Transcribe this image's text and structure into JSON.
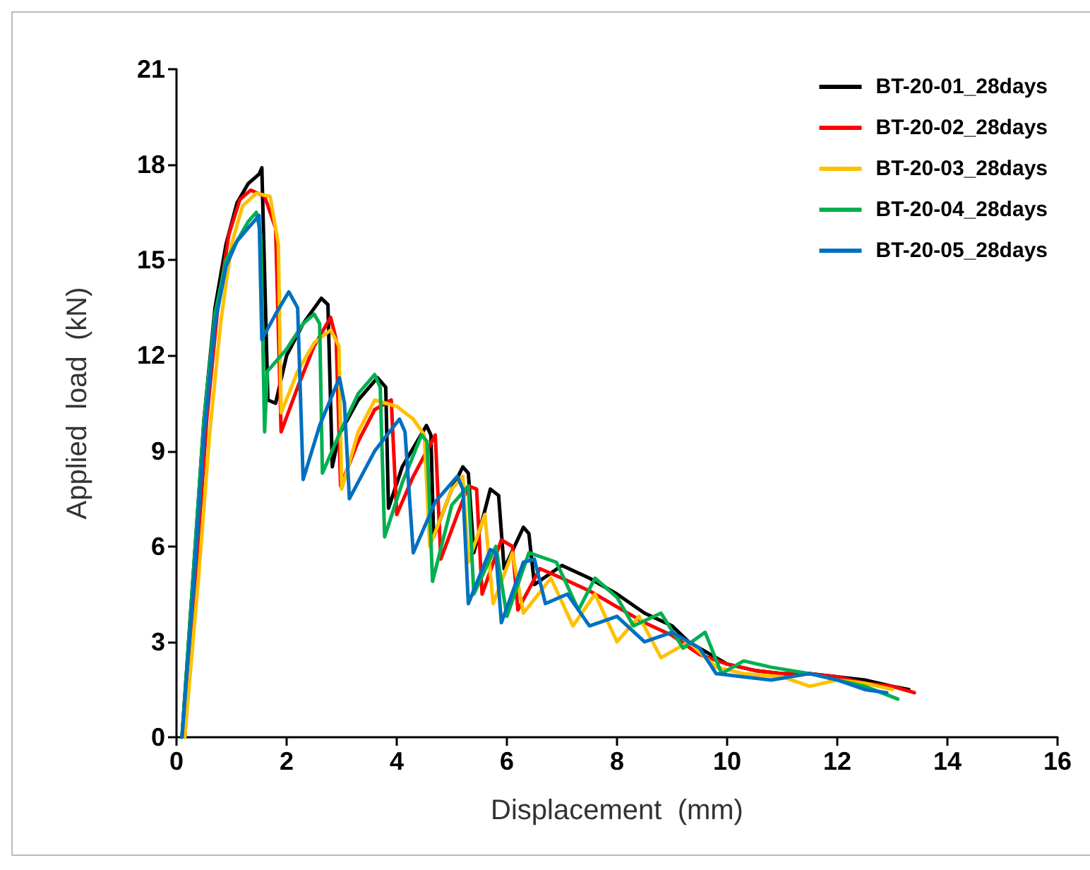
{
  "chart_data": {
    "type": "line",
    "xlabel": "Displacement  (mm)",
    "ylabel": "Applied  load  (kN)",
    "xlim": [
      0,
      16
    ],
    "xticks": [
      0,
      2,
      4,
      6,
      8,
      10,
      12,
      14,
      16
    ],
    "ylim": [
      0,
      21
    ],
    "yticks": [
      0,
      3,
      6,
      9,
      12,
      15,
      18,
      21
    ],
    "grid": false,
    "legend": "top right",
    "marker": "none",
    "line_style": "solid",
    "series": [
      {
        "name": "BT-20-01_28days",
        "color": "#000000",
        "x": [
          0.1,
          0.3,
          0.5,
          0.7,
          0.9,
          1.1,
          1.3,
          1.5,
          1.55,
          1.66,
          1.8,
          2.0,
          2.3,
          2.63,
          2.75,
          2.83,
          2.95,
          3.3,
          3.65,
          3.8,
          3.85,
          4.1,
          4.54,
          4.62,
          4.67,
          5.0,
          5.2,
          5.3,
          5.4,
          5.7,
          5.85,
          5.95,
          6.3,
          6.4,
          6.5,
          7.0,
          7.5,
          8.0,
          8.5,
          9.0,
          9.3,
          9.6,
          10,
          10.5,
          11,
          11.5,
          12,
          12.5,
          13,
          13.3
        ],
        "values": [
          0,
          5,
          10,
          13.5,
          15.5,
          16.8,
          17.4,
          17.7,
          17.9,
          10.6,
          10.5,
          12,
          13,
          13.8,
          13.6,
          8.5,
          9.5,
          10.6,
          11.3,
          11,
          7.2,
          8.5,
          9.8,
          9.5,
          6.3,
          7.8,
          8.5,
          8.3,
          5.8,
          7.8,
          7.6,
          5.3,
          6.6,
          6.4,
          4.8,
          5.4,
          5,
          4.5,
          3.9,
          3.5,
          3,
          2.7,
          2.3,
          2.1,
          2,
          2,
          1.9,
          1.8,
          1.6,
          1.5
        ]
      },
      {
        "name": "BT-20-02_28days",
        "color": "#ff0000",
        "x": [
          0.15,
          0.35,
          0.55,
          0.75,
          0.95,
          1.15,
          1.35,
          1.6,
          1.8,
          1.9,
          2.2,
          2.5,
          2.8,
          2.9,
          2.98,
          3.3,
          3.6,
          3.9,
          4.0,
          4.3,
          4.7,
          4.8,
          5.1,
          5.3,
          5.45,
          5.55,
          5.9,
          6.1,
          6.2,
          6.6,
          7.0,
          7.5,
          8.0,
          8.5,
          9.0,
          9.5,
          10,
          10.5,
          11,
          11.5,
          12,
          12.5,
          13,
          13.4
        ],
        "values": [
          0,
          5,
          10,
          13.5,
          15.8,
          16.9,
          17.2,
          17,
          16,
          9.6,
          11,
          12.3,
          13.2,
          12.5,
          7.9,
          9.3,
          10.3,
          10.6,
          7,
          8.2,
          9.5,
          5.6,
          7,
          7.9,
          7.8,
          4.5,
          6.2,
          6,
          4,
          5.3,
          5,
          4.6,
          4.1,
          3.6,
          3.2,
          2.6,
          2.3,
          2.1,
          2,
          2,
          1.9,
          1.7,
          1.6,
          1.4
        ]
      },
      {
        "name": "BT-20-03_28days",
        "color": "#ffc000",
        "x": [
          0.15,
          0.4,
          0.6,
          0.8,
          1.0,
          1.2,
          1.45,
          1.7,
          1.85,
          1.9,
          2.2,
          2.5,
          2.8,
          2.95,
          3.0,
          3.3,
          3.6,
          4.0,
          4.3,
          4.5,
          4.6,
          5.0,
          5.2,
          5.3,
          5.6,
          5.75,
          6.1,
          6.3,
          6.8,
          7.2,
          7.6,
          8.0,
          8.4,
          8.8,
          9.3,
          9.8,
          10.3,
          11,
          11.5,
          12,
          12.5,
          13
        ],
        "values": [
          0,
          5,
          9.5,
          13,
          15.5,
          16.7,
          17.1,
          17,
          15.5,
          10.2,
          11.5,
          12.4,
          12.8,
          12.3,
          7.8,
          9.6,
          10.6,
          10.4,
          10,
          9.5,
          6,
          7.8,
          8.2,
          5.5,
          7,
          4.2,
          5.8,
          3.9,
          5,
          3.5,
          4.5,
          3,
          3.8,
          2.5,
          3,
          2.2,
          2,
          1.9,
          1.6,
          1.8,
          1.7,
          1.5
        ]
      },
      {
        "name": "BT-20-04_28days",
        "color": "#00b050",
        "x": [
          0.1,
          0.3,
          0.5,
          0.7,
          0.9,
          1.1,
          1.3,
          1.45,
          1.53,
          1.6,
          1.65,
          2.0,
          2.3,
          2.5,
          2.6,
          2.65,
          3.0,
          3.3,
          3.6,
          3.7,
          3.78,
          4.1,
          4.45,
          4.55,
          4.65,
          5.0,
          5.3,
          5.4,
          5.8,
          6.0,
          6.4,
          6.9,
          7.3,
          7.6,
          8.0,
          8.3,
          8.8,
          9.2,
          9.6,
          9.9,
          10.3,
          10.8,
          11.5,
          12,
          12.5,
          13.1
        ],
        "values": [
          0,
          5,
          10,
          13.3,
          15,
          15.6,
          16.2,
          16.5,
          15.8,
          9.6,
          11.5,
          12.2,
          13,
          13.3,
          13,
          8.3,
          9.7,
          10.8,
          11.4,
          11,
          6.3,
          8,
          9.5,
          9.3,
          4.9,
          7.3,
          7.9,
          4.5,
          6,
          3.8,
          5.8,
          5.5,
          4,
          5,
          4.4,
          3.5,
          3.9,
          2.8,
          3.3,
          2,
          2.4,
          2.2,
          2,
          1.8,
          1.6,
          1.2
        ]
      },
      {
        "name": "BT-20-05_28days",
        "color": "#0070c0",
        "x": [
          0.1,
          0.3,
          0.5,
          0.7,
          0.9,
          1.1,
          1.3,
          1.5,
          1.55,
          1.8,
          2.04,
          2.2,
          2.3,
          2.6,
          2.96,
          3.05,
          3.14,
          3.6,
          4.05,
          4.15,
          4.3,
          4.7,
          5.1,
          5.2,
          5.3,
          5.7,
          5.8,
          5.9,
          6.3,
          6.5,
          6.7,
          7.1,
          7.5,
          8,
          8.5,
          9,
          9.5,
          9.8,
          10.3,
          10.8,
          11.5,
          12,
          12.5,
          12.9
        ],
        "values": [
          0,
          4.5,
          9.5,
          13,
          14.8,
          15.6,
          16,
          16.4,
          12.5,
          13.3,
          14,
          13.5,
          8.1,
          9.8,
          11.3,
          10.5,
          7.5,
          9,
          10,
          9.6,
          5.8,
          7.4,
          8.2,
          7.8,
          4.2,
          5.9,
          5.8,
          3.6,
          5.5,
          5.6,
          4.2,
          4.5,
          3.5,
          3.8,
          3,
          3.3,
          2.8,
          2,
          1.9,
          1.8,
          2,
          1.8,
          1.5,
          1.4
        ]
      }
    ]
  }
}
